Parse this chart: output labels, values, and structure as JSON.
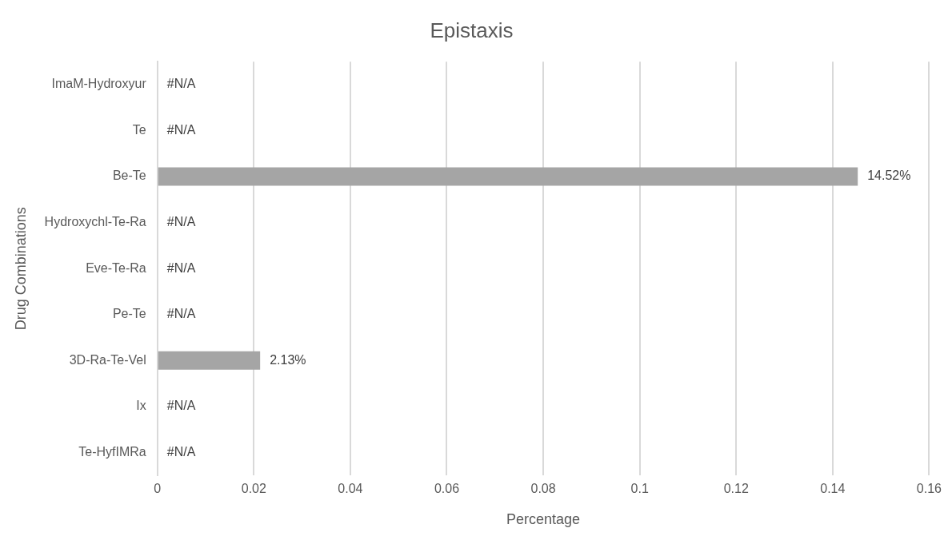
{
  "chart_data": {
    "type": "bar",
    "orientation": "horizontal",
    "title": "Epistaxis",
    "xlabel": "Percentage",
    "ylabel": "Drug Combinations",
    "categories": [
      "ImaM-Hydroxyur",
      "Te",
      "Be-Te",
      "Hydroxychl-Te-Ra",
      "Eve-Te-Ra",
      "Pe-Te",
      "3D-Ra-Te-Vel",
      "Ix",
      "Te-HyfIMRa"
    ],
    "values": [
      null,
      null,
      0.1452,
      null,
      null,
      null,
      0.0213,
      null,
      null
    ],
    "value_labels": [
      "#N/A",
      "#N/A",
      "14.52%",
      "#N/A",
      "#N/A",
      "#N/A",
      "2.13%",
      "#N/A",
      "#N/A"
    ],
    "color": "#a5a5a5",
    "xlim": [
      0,
      0.16
    ],
    "xticks": [
      0,
      0.02,
      0.04,
      0.06,
      0.08,
      0.1,
      0.12,
      0.14,
      0.16
    ],
    "grid": "x",
    "legend": false
  }
}
